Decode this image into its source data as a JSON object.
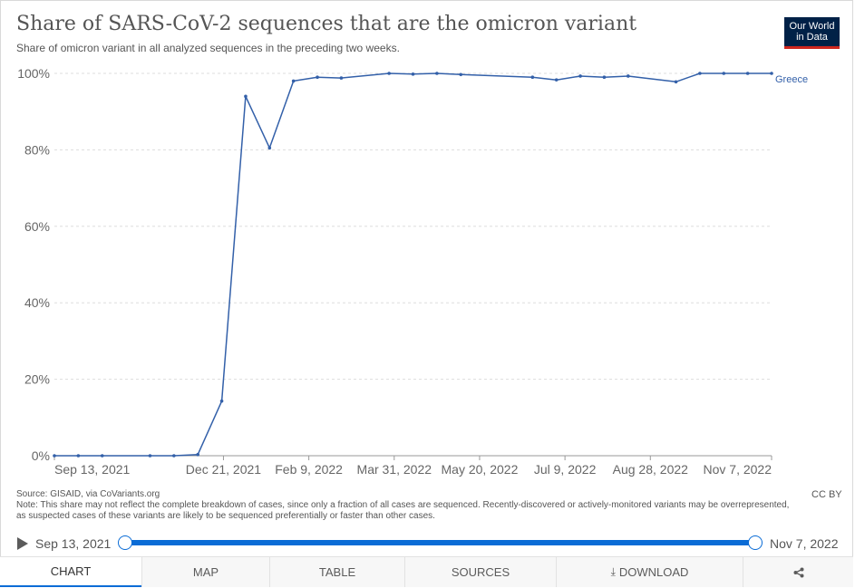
{
  "header": {
    "title": "Share of SARS-CoV-2 sequences that are the omicron variant",
    "subtitle": "Share of omicron variant in all analyzed sequences in the preceding two weeks."
  },
  "logo": {
    "line1": "Our World",
    "line2": "in Data"
  },
  "chart_data": {
    "type": "line",
    "title": "Share of SARS-CoV-2 sequences that are the omicron variant",
    "subtitle": "Share of omicron variant in all analyzed sequences in the preceding two weeks.",
    "x_start": "2021-09-13",
    "x_end": "2022-11-07",
    "x_ticks": [
      "Sep 13, 2021",
      "Dec 21, 2021",
      "Feb 9, 2022",
      "Mar 31, 2022",
      "May 20, 2022",
      "Jul 9, 2022",
      "Aug 28, 2022",
      "Nov 7, 2022"
    ],
    "x_tick_dates": [
      "2021-09-13",
      "2021-12-21",
      "2022-02-09",
      "2022-03-31",
      "2022-05-20",
      "2022-07-09",
      "2022-08-28",
      "2022-11-07"
    ],
    "y_ticks": [
      "0%",
      "20%",
      "40%",
      "60%",
      "80%",
      "100%"
    ],
    "ylim": [
      0,
      100
    ],
    "grid": true,
    "color": "#3360a9",
    "series": [
      {
        "name": "Greece",
        "points": [
          [
            "2021-09-13",
            0
          ],
          [
            "2021-09-27",
            0
          ],
          [
            "2021-10-11",
            0
          ],
          [
            "2021-11-08",
            0
          ],
          [
            "2021-11-22",
            0
          ],
          [
            "2021-12-06",
            0.3
          ],
          [
            "2021-12-20",
            14.3
          ],
          [
            "2022-01-03",
            94
          ],
          [
            "2022-01-17",
            80.5
          ],
          [
            "2022-01-31",
            98
          ],
          [
            "2022-02-14",
            99
          ],
          [
            "2022-02-28",
            98.8
          ],
          [
            "2022-03-28",
            100
          ],
          [
            "2022-04-11",
            99.8
          ],
          [
            "2022-04-25",
            100
          ],
          [
            "2022-05-09",
            99.7
          ],
          [
            "2022-06-20",
            99
          ],
          [
            "2022-07-04",
            98.3
          ],
          [
            "2022-07-18",
            99.3
          ],
          [
            "2022-08-01",
            99
          ],
          [
            "2022-08-15",
            99.3
          ],
          [
            "2022-09-12",
            97.8
          ],
          [
            "2022-09-26",
            100
          ],
          [
            "2022-10-10",
            100
          ],
          [
            "2022-10-24",
            100
          ],
          [
            "2022-11-07",
            100
          ]
        ]
      }
    ]
  },
  "footer": {
    "source": "Source: GISAID, via CoVariants.org",
    "note": "Note: This share may not reflect the complete breakdown of cases, since only a fraction of all cases are sequenced. Recently-discovered or actively-monitored variants may be overrepresented, as suspected cases of these variants are likely to be sequenced preferentially or faster than other cases.",
    "license": "CC BY"
  },
  "timeline": {
    "start_label": "Sep 13, 2021",
    "end_label": "Nov 7, 2022"
  },
  "tabs": [
    "CHART",
    "MAP",
    "TABLE",
    "SOURCES",
    "DOWNLOAD"
  ],
  "icons": {
    "play": "play-icon",
    "download": "download-icon",
    "share": "share-icon"
  }
}
